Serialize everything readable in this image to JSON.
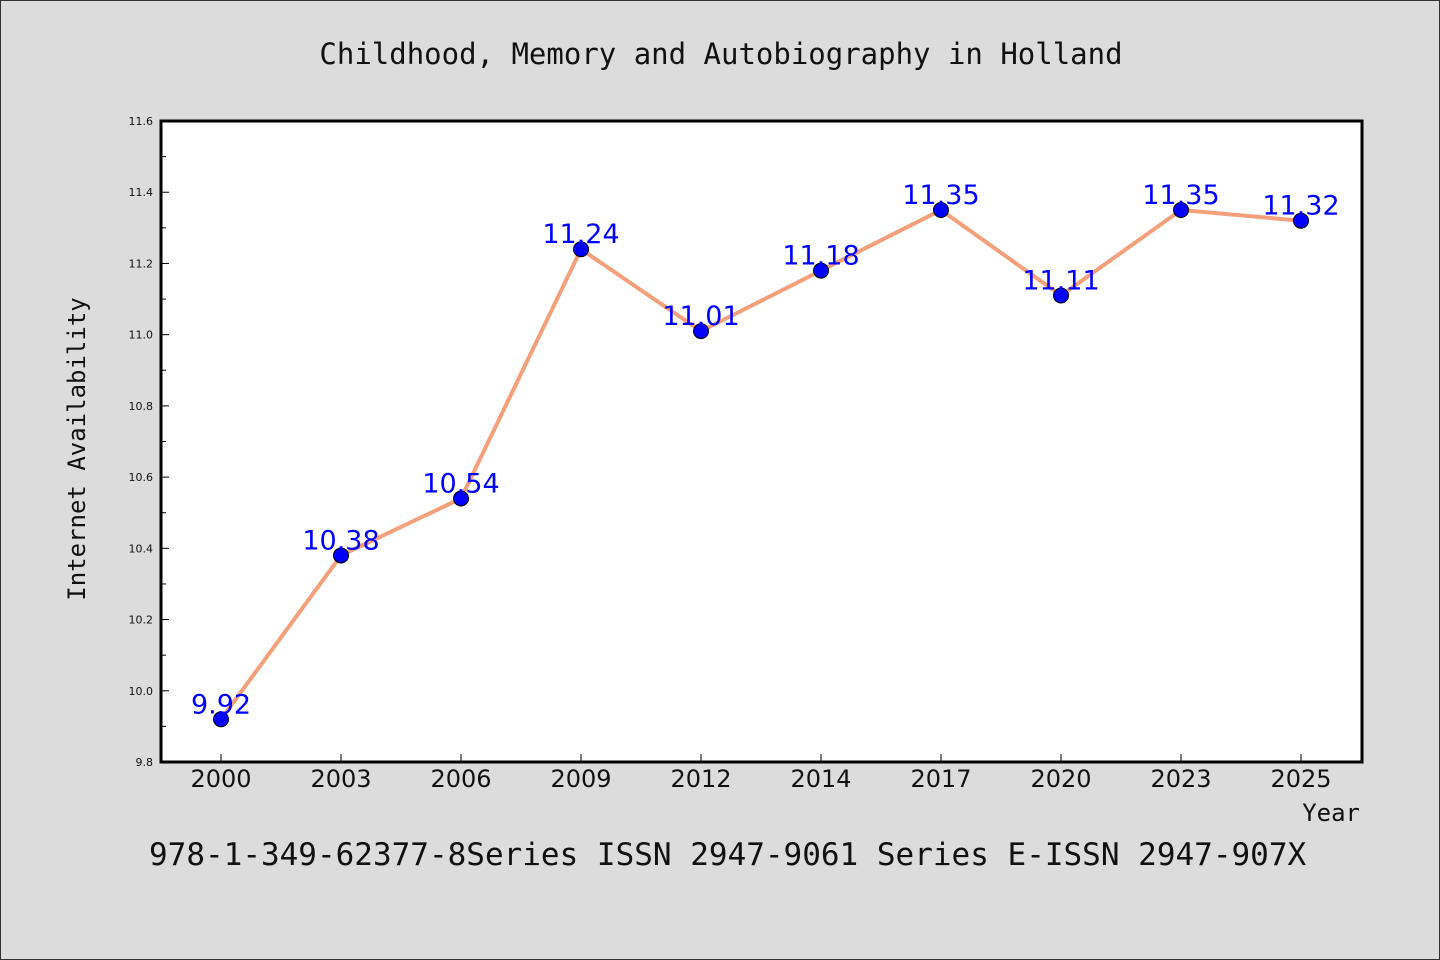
{
  "chart_data": {
    "type": "line",
    "title": "Childhood, Memory and Autobiography in Holland",
    "xlabel": "Year",
    "ylabel": "Internet Availability",
    "categories": [
      "2000",
      "2003",
      "2006",
      "2009",
      "2012",
      "2014",
      "2017",
      "2020",
      "2023",
      "2025"
    ],
    "series": [
      {
        "values": [
          9.92,
          10.38,
          10.54,
          11.24,
          11.01,
          11.18,
          11.35,
          11.11,
          11.35,
          11.32
        ],
        "line_color": "#f4a07a",
        "marker_color": "#0000ff"
      }
    ],
    "data_labels": [
      "9.92",
      "10.38",
      "10.54",
      "11.24",
      "11.01",
      "11.18",
      "11.35",
      "11.11",
      "11.35",
      "11.32"
    ],
    "ylim": [
      9.8,
      11.6
    ],
    "yticks": [
      "9.8",
      "10.0",
      "10.2",
      "10.4",
      "10.6",
      "10.8",
      "11.0",
      "11.2",
      "11.4",
      "11.6"
    ],
    "grid": false,
    "legend": "none"
  },
  "footer_text": "978-1-349-62377-8Series ISSN 2947-9061 Series E-ISSN 2947-907X",
  "colors": {
    "background": "#dcdcdc",
    "plot_area": "#ffffff",
    "line": "#f4a07a",
    "marker": "#0000ff",
    "data_label": "#0000ff"
  }
}
